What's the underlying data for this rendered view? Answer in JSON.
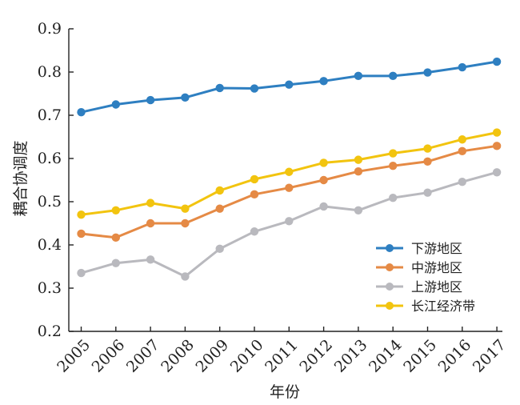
{
  "chart_data": {
    "type": "line",
    "xlabel": "年份",
    "ylabel": "耦合协调度",
    "ylim": [
      0.2,
      0.9
    ],
    "yticks": [
      "0.2",
      "0.3",
      "0.4",
      "0.5",
      "0.6",
      "0.7",
      "0.8",
      "0.9"
    ],
    "categories": [
      "2005",
      "2006",
      "2007",
      "2008",
      "2009",
      "2010",
      "2011",
      "2012",
      "2013",
      "2014",
      "2015",
      "2016",
      "2017"
    ],
    "legend_position": "bottom-right",
    "grid": false,
    "series": [
      {
        "name": "下游地区",
        "color": "#2e7fc1",
        "values": [
          0.707,
          0.725,
          0.735,
          0.741,
          0.763,
          0.762,
          0.771,
          0.779,
          0.791,
          0.791,
          0.799,
          0.811,
          0.824
        ]
      },
      {
        "name": "中游地区",
        "color": "#e58a45",
        "values": [
          0.426,
          0.417,
          0.45,
          0.45,
          0.484,
          0.517,
          0.532,
          0.55,
          0.57,
          0.583,
          0.593,
          0.617,
          0.629
        ]
      },
      {
        "name": "上游地区",
        "color": "#b9b9be",
        "values": [
          0.335,
          0.358,
          0.366,
          0.327,
          0.391,
          0.431,
          0.455,
          0.489,
          0.48,
          0.509,
          0.521,
          0.546,
          0.568
        ]
      },
      {
        "name": "长江经济带",
        "color": "#f2c40f",
        "values": [
          0.47,
          0.48,
          0.497,
          0.484,
          0.526,
          0.552,
          0.569,
          0.59,
          0.597,
          0.612,
          0.623,
          0.644,
          0.66
        ]
      }
    ]
  }
}
